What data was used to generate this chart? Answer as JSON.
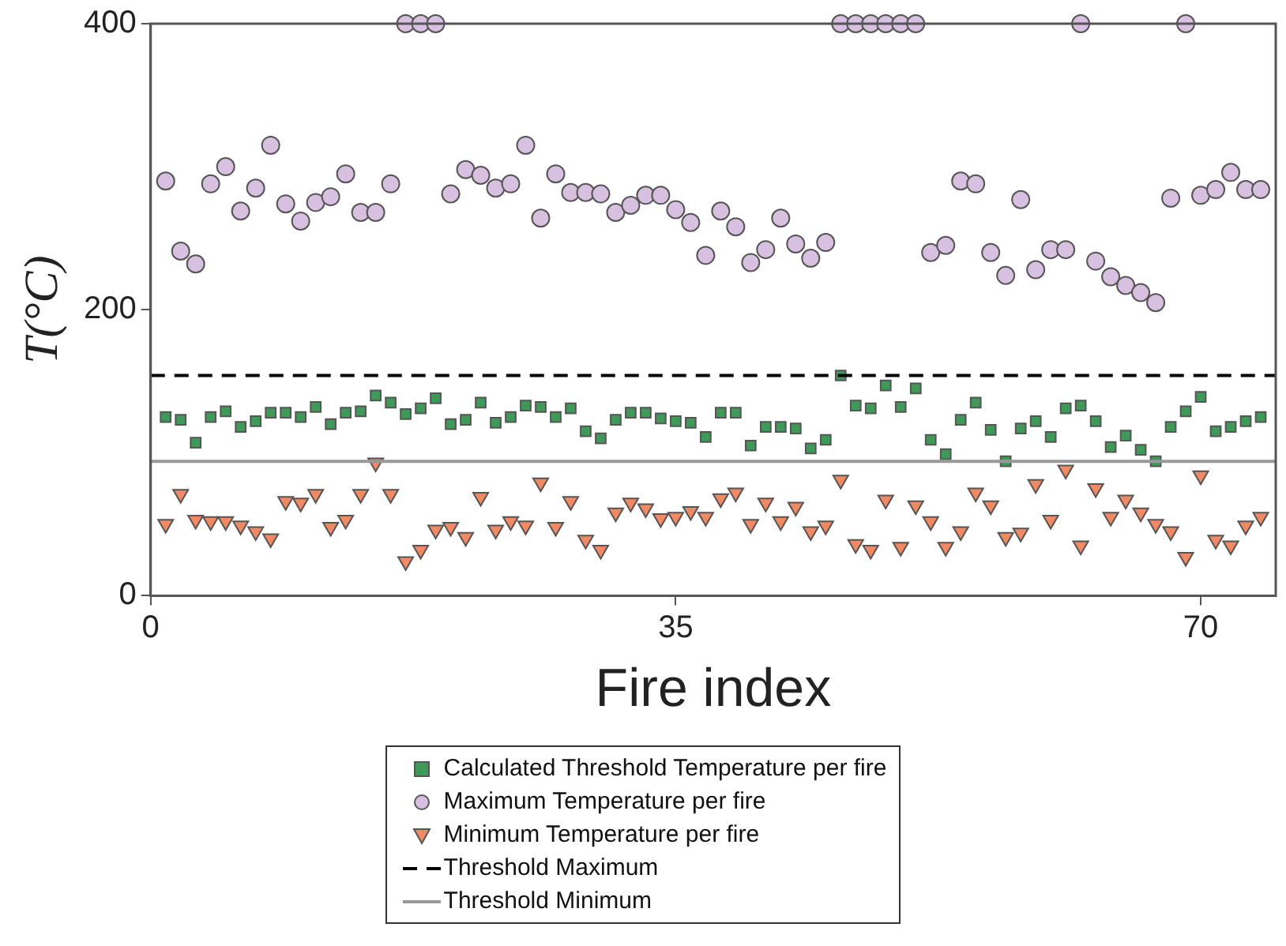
{
  "chart_data": {
    "type": "scatter",
    "xlabel": "Fire index",
    "ylabel": "T(°C)",
    "x": [
      1,
      2,
      3,
      4,
      5,
      6,
      7,
      8,
      9,
      10,
      11,
      12,
      13,
      14,
      15,
      16,
      17,
      18,
      19,
      20,
      21,
      22,
      23,
      24,
      25,
      26,
      27,
      28,
      29,
      30,
      31,
      32,
      33,
      34,
      35,
      36,
      37,
      38,
      39,
      40,
      41,
      42,
      43,
      44,
      45,
      46,
      47,
      48,
      49,
      50,
      51,
      52,
      53,
      54,
      55,
      56,
      57,
      58,
      59,
      60,
      61,
      62,
      63,
      64,
      65,
      66,
      67,
      68,
      69,
      70,
      71,
      72,
      73,
      74
    ],
    "series": [
      {
        "name": "Calculated Threshold Temperature per fire",
        "color": "#3f9a5a",
        "marker": "square",
        "values": [
          125,
          123,
          107,
          125,
          129,
          118,
          122,
          128,
          128,
          125,
          132,
          120,
          128,
          129,
          140,
          135,
          127,
          131,
          138,
          120,
          123,
          135,
          121,
          125,
          133,
          132,
          125,
          131,
          115,
          110,
          123,
          128,
          128,
          124,
          122,
          121,
          111,
          128,
          128,
          105,
          118,
          118,
          117,
          103,
          109,
          154,
          133,
          131,
          147,
          132,
          145,
          109,
          99,
          123,
          135,
          116,
          94,
          117,
          122,
          111,
          131,
          133,
          122,
          104,
          112,
          102,
          94,
          118,
          129,
          139,
          115,
          118,
          122,
          125
        ]
      },
      {
        "name": "Maximum Temperature per fire",
        "color": "#d8c0e0",
        "marker": "circle",
        "values": [
          290,
          241,
          232,
          288,
          300,
          269,
          285,
          315,
          274,
          262,
          275,
          279,
          295,
          268,
          268,
          288,
          400,
          400,
          400,
          281,
          298,
          294,
          285,
          288,
          315,
          264,
          295,
          282,
          282,
          281,
          268,
          273,
          280,
          280,
          270,
          261,
          238,
          269,
          258,
          233,
          242,
          264,
          246,
          236,
          247,
          400,
          400,
          400,
          400,
          400,
          400,
          240,
          245,
          290,
          288,
          240,
          224,
          277,
          228,
          242,
          242,
          400,
          234,
          223,
          217,
          212,
          205,
          278,
          400,
          280,
          284,
          296,
          284,
          284
        ]
      },
      {
        "name": "Minimum Temperature per fire",
        "color": "#f08a64",
        "marker": "triangle",
        "values": [
          50,
          71,
          53,
          52,
          52,
          49,
          45,
          40,
          66,
          65,
          71,
          48,
          53,
          71,
          93,
          71,
          24,
          32,
          46,
          48,
          41,
          69,
          46,
          52,
          49,
          79,
          48,
          66,
          39,
          32,
          58,
          65,
          61,
          54,
          55,
          59,
          55,
          68,
          72,
          50,
          65,
          52,
          62,
          45,
          49,
          81,
          36,
          32,
          67,
          34,
          63,
          52,
          34,
          45,
          72,
          63,
          41,
          44,
          78,
          53,
          88,
          35,
          75,
          55,
          67,
          58,
          50,
          45,
          27,
          84,
          39,
          35,
          49,
          55
        ]
      }
    ],
    "ref_lines": [
      {
        "axis": "y",
        "value": 154,
        "label": "Threshold Maximum",
        "color": "#000000",
        "line_style": "dashed"
      },
      {
        "axis": "y",
        "value": 94,
        "label": "Threshold Minimum",
        "color": "#999999",
        "line_style": "solid"
      }
    ],
    "xlim": [
      0,
      75
    ],
    "xticks": [
      0,
      35,
      70
    ],
    "ylim": [
      0,
      400
    ],
    "yticks": [
      0,
      200,
      400
    ],
    "grid": false,
    "legend": "bottom"
  }
}
